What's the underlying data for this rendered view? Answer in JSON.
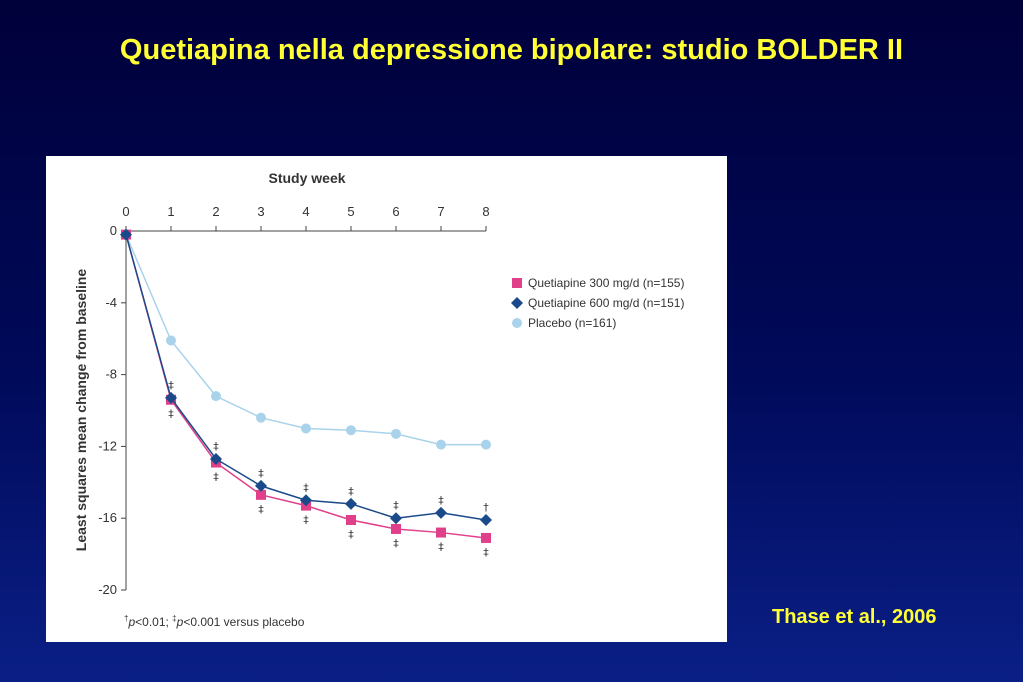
{
  "slide": {
    "title": "Quetiapina nella depressione bipolare: studio BOLDER II",
    "citation": "Thase et al., 2006"
  },
  "chart_data": {
    "type": "line",
    "title": "",
    "xlabel": "Study week",
    "ylabel": "Least squares mean change from baseline",
    "x": [
      0,
      1,
      2,
      3,
      4,
      5,
      6,
      7,
      8
    ],
    "xlim": [
      0,
      8
    ],
    "ylim": [
      -20,
      0
    ],
    "y_ticks": [
      0,
      -4,
      -8,
      -12,
      -16,
      -20
    ],
    "x_axis_position": "top",
    "legend_position": "right",
    "grid": false,
    "series": [
      {
        "name": "Quetiapine 300 mg/d (n=155)",
        "marker": "square",
        "color": "#e0408a",
        "values": [
          -0.2,
          -9.4,
          -12.9,
          -14.7,
          -15.3,
          -16.1,
          -16.6,
          -16.8,
          -17.1
        ],
        "below_marks": [
          "",
          "‡",
          "‡",
          "‡",
          "‡",
          "‡",
          "‡",
          "‡",
          "‡"
        ]
      },
      {
        "name": "Quetiapine 600 mg/d (n=151)",
        "marker": "diamond",
        "color": "#1a4a8a",
        "values": [
          -0.2,
          -9.3,
          -12.7,
          -14.2,
          -15.0,
          -15.2,
          -16.0,
          -15.7,
          -16.1
        ],
        "above_marks": [
          "",
          "‡",
          "‡",
          "‡",
          "‡",
          "‡",
          "‡",
          "‡",
          "†"
        ]
      },
      {
        "name": "Placebo (n=161)",
        "marker": "circle",
        "color": "#a9d3ea",
        "values": [
          -0.2,
          -6.1,
          -9.2,
          -10.4,
          -11.0,
          -11.1,
          -11.3,
          -11.9,
          -11.9
        ]
      }
    ],
    "footnote": {
      "dagger": "†",
      "p1": "p",
      "t1": "<0.01; ",
      "ddagger": "‡",
      "p2": "p",
      "t2": "<0.001 versus placebo"
    }
  }
}
